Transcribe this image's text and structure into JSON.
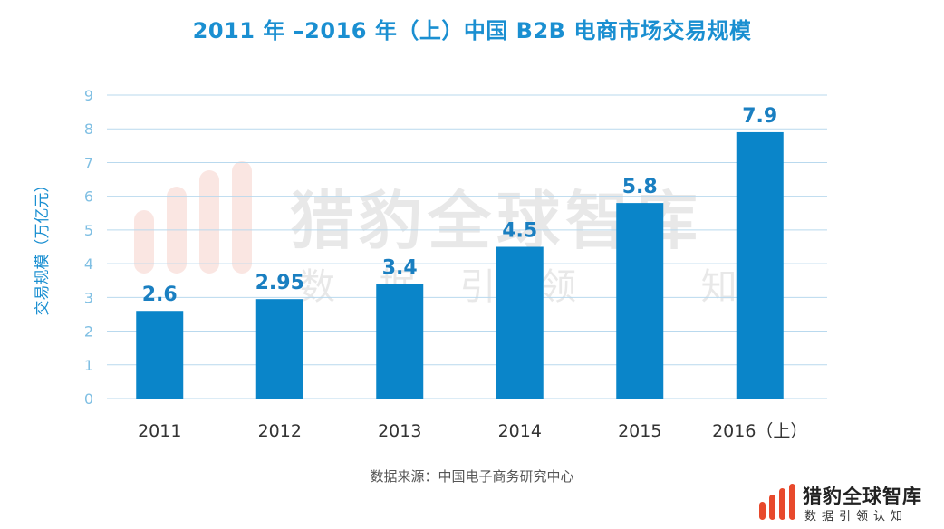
{
  "chart_data": {
    "type": "bar",
    "title": "2011 年 –2016 年（上）中国 B2B 电商市场交易规模",
    "ylabel": "交易规模（万亿元）",
    "xlabel": "",
    "categories": [
      "2011",
      "2012",
      "2013",
      "2014",
      "2015",
      "2016（上）"
    ],
    "values": [
      2.6,
      2.95,
      3.4,
      4.5,
      5.8,
      7.9
    ],
    "data_labels": [
      "2.6",
      "2.95",
      "3.4",
      "4.5",
      "5.8",
      "7.9"
    ],
    "ylim": [
      0,
      9
    ],
    "yticks": [
      0,
      1,
      2,
      3,
      4,
      5,
      6,
      7,
      8,
      9
    ],
    "grid": true,
    "legend": "none",
    "bar_color": "#0a85c9",
    "label_color": "#1a7fc1"
  },
  "source": "数据来源：中国电子商务研究中心",
  "watermark": {
    "name": "猎豹全球智库",
    "slogan": "数 据 引 领 认 知"
  },
  "logo": {
    "name": "猎豹全球智库",
    "slogan": "数据引领认知"
  }
}
